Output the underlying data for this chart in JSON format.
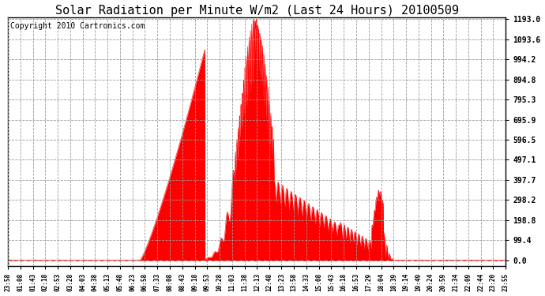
{
  "title": "Solar Radiation per Minute W/m2 (Last 24 Hours) 20100509",
  "copyright": "Copyright 2010 Cartronics.com",
  "yticks": [
    0.0,
    99.4,
    198.8,
    298.2,
    397.7,
    497.1,
    596.5,
    695.9,
    795.3,
    894.8,
    994.2,
    1093.6,
    1193.0
  ],
  "ymax": 1193.0,
  "ymin": 0.0,
  "fill_color": "#ff0000",
  "line_color": "#ff0000",
  "dashed_line_color": "#ff0000",
  "bg_color": "#ffffff",
  "title_fontsize": 11,
  "copyright_fontsize": 7,
  "xtick_labels": [
    "23:58",
    "01:08",
    "01:43",
    "02:18",
    "02:53",
    "03:28",
    "04:03",
    "04:38",
    "05:13",
    "05:48",
    "06:23",
    "06:58",
    "07:33",
    "08:08",
    "08:43",
    "09:18",
    "09:53",
    "10:28",
    "11:03",
    "11:38",
    "12:13",
    "12:48",
    "13:23",
    "13:58",
    "14:33",
    "15:08",
    "15:43",
    "16:18",
    "16:53",
    "17:29",
    "18:04",
    "18:39",
    "19:14",
    "19:49",
    "20:24",
    "20:59",
    "21:34",
    "22:09",
    "22:44",
    "23:20",
    "23:55"
  ],
  "n_points": 1440
}
